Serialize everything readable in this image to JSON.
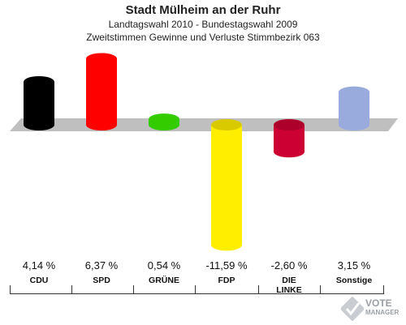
{
  "header": {
    "title": "Stadt Mülheim an der Ruhr",
    "subtitle1": "Landtagswahl 2010 - Bundestagswahl 2009",
    "subtitle2": "Zweitstimmen Gewinne und Verluste Stimmbezirk 063"
  },
  "logo": {
    "line1": "VOTE",
    "line2": "MANAGER"
  },
  "chart_data": {
    "type": "bar",
    "categories": [
      "CDU",
      "SPD",
      "GRÜNE",
      "FDP",
      "DIE LINKE",
      "Sonstige"
    ],
    "values": [
      4.14,
      6.37,
      0.54,
      -11.59,
      -2.6,
      3.15
    ],
    "value_labels": [
      "4,14 %",
      "6,37 %",
      "0,54 %",
      "-11,59 %",
      "-2,60 %",
      "3,15 %"
    ],
    "colors": [
      "#000000",
      "#ff0000",
      "#33cc00",
      "#ffee00",
      "#cc0033",
      "#99aadd"
    ],
    "title": "Stadt Mülheim an der Ruhr",
    "xlabel": "",
    "ylabel": "",
    "grid": false
  }
}
